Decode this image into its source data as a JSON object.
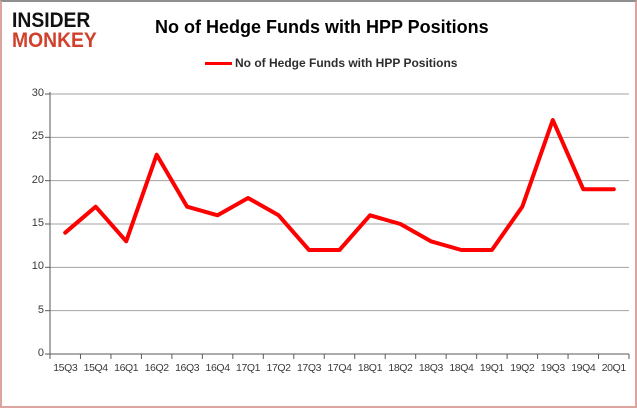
{
  "logo": {
    "line1": "INSIDER",
    "line2": "MONKEY"
  },
  "chart": {
    "title": "No of Hedge Funds with HPP Positions",
    "legend_label": "No of Hedge Funds with HPP Positions"
  },
  "chart_data": {
    "type": "line",
    "title": "No of Hedge Funds with HPP Positions",
    "categories": [
      "15Q3",
      "15Q4",
      "16Q1",
      "16Q2",
      "16Q3",
      "16Q4",
      "17Q1",
      "17Q2",
      "17Q3",
      "17Q4",
      "18Q1",
      "18Q2",
      "18Q3",
      "18Q4",
      "19Q1",
      "19Q2",
      "19Q3",
      "19Q4",
      "20Q1"
    ],
    "series": [
      {
        "name": "No of Hedge Funds with HPP Positions",
        "values": [
          14,
          17,
          13,
          23,
          17,
          16,
          18,
          16,
          12,
          12,
          16,
          15,
          13,
          12,
          12,
          17,
          27,
          19,
          19
        ]
      }
    ],
    "xlabel": "",
    "ylabel": "",
    "ylim": [
      0,
      30
    ],
    "yticks": [
      0,
      5,
      10,
      15,
      20,
      25,
      30
    ],
    "grid": true,
    "legend_position": "top-center",
    "line_color": "#fe0000",
    "gridline_color": "#a3a3a3",
    "axis_color": "#5a5a5a"
  }
}
